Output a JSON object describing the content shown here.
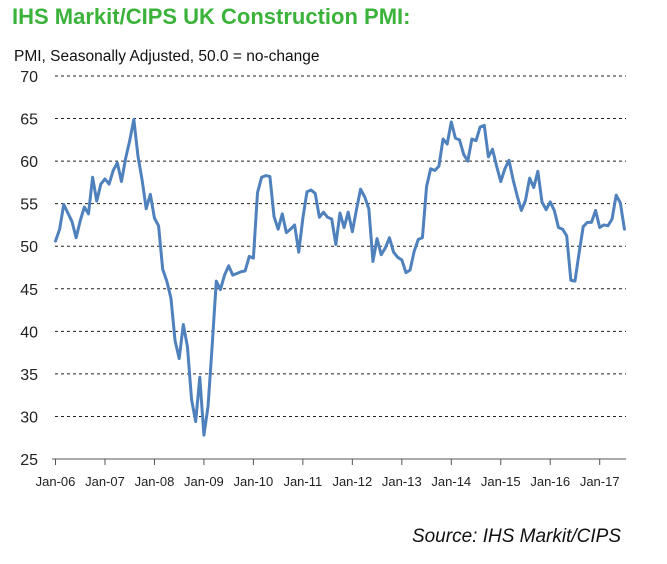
{
  "title": "IHS Markit/CIPS UK Construction PMI:",
  "subtitle": "PMI, Seasonally Adjusted, 50.0 = no-change",
  "source": "Source: IHS Markit/CIPS",
  "chart_data": {
    "type": "line",
    "title": "IHS Markit/CIPS UK Construction PMI:",
    "ylabel": "PMI, Seasonally Adjusted, 50.0 = no-change",
    "ylim": [
      25,
      70
    ],
    "y_ticks": [
      "25",
      "30",
      "35",
      "40",
      "45",
      "50",
      "55",
      "60",
      "65",
      "70"
    ],
    "grid": "horizontal dashed",
    "x_tick_labels": [
      "Jan-06",
      "Jan-07",
      "Jan-08",
      "Jan-09",
      "Jan-10",
      "Jan-11",
      "Jan-12",
      "Jan-13",
      "Jan-14",
      "Jan-15",
      "Jan-16",
      "Jan-17"
    ],
    "x_start": "2006-01",
    "line_color": "#4f81bd",
    "series": [
      {
        "values": [
          50.6,
          52.0,
          54.9,
          53.9,
          52.9,
          51.0,
          53.0,
          54.6,
          53.8,
          58.1,
          55.3,
          57.3,
          57.9,
          57.3,
          58.9,
          59.8,
          57.6,
          60.3,
          62.4,
          64.9,
          60.6,
          57.8,
          54.4,
          56.1,
          53.3,
          52.4,
          47.3,
          45.9,
          43.9,
          38.9,
          36.8,
          40.8,
          38.2,
          32.0,
          29.4,
          34.6,
          27.8,
          31.2,
          38.3,
          45.9,
          44.9,
          46.6,
          47.7,
          46.6,
          46.8,
          47.0,
          47.1,
          48.8,
          48.6,
          56.3,
          58.1,
          58.3,
          58.2,
          53.5,
          52.0,
          53.8,
          51.6,
          52.0,
          52.5,
          49.3,
          53.3,
          56.4,
          56.6,
          56.2,
          53.4,
          54.0,
          53.4,
          53.2,
          50.2,
          53.9,
          52.2,
          54.0,
          51.7,
          54.3,
          56.7,
          55.8,
          54.4,
          48.2,
          50.9,
          49.0,
          49.8,
          51.0,
          49.3,
          48.7,
          48.4,
          46.9,
          47.2,
          49.4,
          50.8,
          51.0,
          57.0,
          59.1,
          58.9,
          59.4,
          62.6,
          62.0,
          64.6,
          62.7,
          62.5,
          60.8,
          60.0,
          62.6,
          62.4,
          64.0,
          64.2,
          60.5,
          61.4,
          59.4,
          57.6,
          59.1,
          60.1,
          57.8,
          55.9,
          54.2,
          55.4,
          58.0,
          56.9,
          58.8,
          55.2,
          54.3,
          55.2,
          54.2,
          52.2,
          52.0,
          51.2,
          46.0,
          45.9,
          49.2,
          52.3,
          52.8,
          52.8,
          54.2,
          52.2,
          52.5,
          52.4,
          53.2,
          56.0,
          55.1,
          52.0
        ]
      }
    ]
  }
}
